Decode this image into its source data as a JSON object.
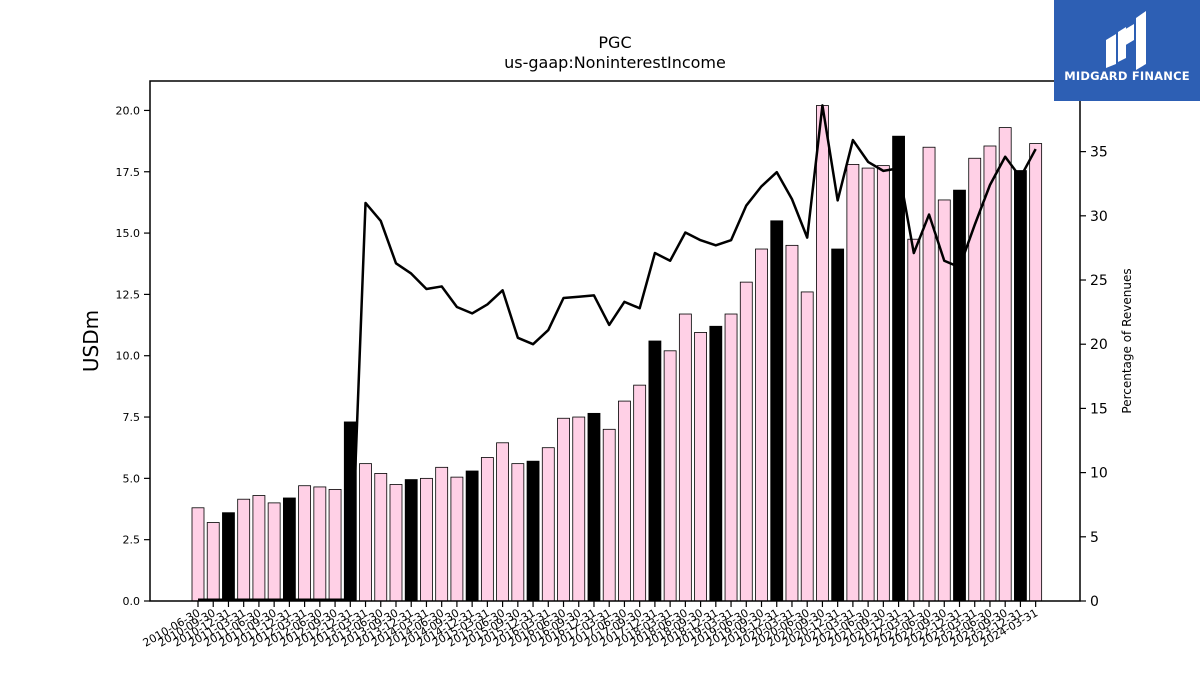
{
  "brand": {
    "name": "MIDGARD FINANCE",
    "logo_icon": "midgard-finance-logo-icon",
    "background_color": "#2d5fb4"
  },
  "chart_data": {
    "type": "bar",
    "title": "PGC",
    "subtitle": "us-gaap:NoninterestIncome",
    "ylabel": "USDm",
    "y2label": "Percentage of Revenues",
    "ylim": [
      0,
      21.2
    ],
    "y2lim": [
      0,
      40.5
    ],
    "yticks": [
      "0.0",
      "2.5",
      "5.0",
      "7.5",
      "10.0",
      "12.5",
      "15.0",
      "17.5",
      "20.0"
    ],
    "y2ticks": [
      "0",
      "5",
      "10",
      "15",
      "20",
      "25",
      "30",
      "35"
    ],
    "grid": false,
    "bar_colors": {
      "quarter": "#ffd0e6",
      "year_end": "#000000"
    },
    "categories": [
      "2010-06-30",
      "2010-09-30",
      "2010-12-31",
      "2011-03-31",
      "2011-06-30",
      "2011-09-30",
      "2011-12-31",
      "2012-03-31",
      "2012-06-30",
      "2012-09-30",
      "2012-12-31",
      "2013-03-31",
      "2013-06-30",
      "2013-09-30",
      "2013-12-31",
      "2014-03-31",
      "2014-06-30",
      "2014-09-30",
      "2014-12-31",
      "2015-03-31",
      "2015-06-30",
      "2015-09-30",
      "2015-12-31",
      "2016-03-31",
      "2016-06-30",
      "2016-09-30",
      "2016-12-31",
      "2017-03-31",
      "2017-06-30",
      "2017-09-30",
      "2017-12-31",
      "2018-03-31",
      "2018-06-30",
      "2018-09-30",
      "2018-12-31",
      "2019-03-31",
      "2019-06-30",
      "2019-09-30",
      "2019-12-31",
      "2020-03-31",
      "2020-06-30",
      "2020-09-30",
      "2020-12-31",
      "2021-03-31",
      "2021-06-30",
      "2021-09-30",
      "2021-12-31",
      "2022-03-31",
      "2022-06-30",
      "2022-09-30",
      "2022-12-31",
      "2023-03-31",
      "2023-06-30",
      "2023-09-30",
      "2023-12-31",
      "2024-03-31"
    ],
    "series": [
      {
        "type": "bar",
        "values": [
          3.8,
          3.2,
          3.6,
          4.15,
          4.3,
          4.0,
          4.2,
          4.7,
          4.65,
          4.55,
          7.3,
          5.6,
          5.2,
          4.75,
          4.95,
          5.0,
          5.45,
          5.05,
          5.3,
          5.85,
          6.45,
          5.6,
          5.7,
          6.25,
          7.45,
          7.5,
          7.65,
          7.0,
          8.15,
          8.8,
          10.6,
          10.2,
          11.7,
          10.95,
          11.2,
          11.7,
          13.0,
          14.35,
          15.5,
          14.5,
          12.6,
          20.2,
          14.35,
          17.8,
          17.65,
          17.75,
          18.95,
          14.75,
          18.5,
          16.35,
          16.75,
          18.05,
          18.55,
          19.3,
          17.55,
          18.65
        ],
        "year_end": [
          false,
          false,
          true,
          false,
          false,
          false,
          true,
          false,
          false,
          false,
          true,
          false,
          false,
          false,
          true,
          false,
          false,
          false,
          true,
          false,
          false,
          false,
          true,
          false,
          false,
          false,
          true,
          false,
          false,
          false,
          true,
          false,
          false,
          false,
          true,
          false,
          false,
          false,
          true,
          false,
          false,
          false,
          true,
          false,
          false,
          false,
          true,
          false,
          false,
          false,
          true,
          false,
          false,
          false,
          true,
          false
        ]
      },
      {
        "type": "line",
        "axis": "right",
        "values": [
          0.1,
          0.1,
          0.1,
          0.1,
          0.1,
          0.1,
          0.1,
          0.1,
          0.1,
          0.1,
          0.1,
          31.0,
          29.6,
          26.3,
          25.5,
          24.3,
          24.5,
          22.9,
          22.4,
          23.1,
          24.2,
          20.5,
          20.0,
          21.1,
          23.6,
          23.7,
          23.8,
          21.5,
          23.3,
          22.8,
          27.1,
          26.5,
          28.7,
          28.1,
          27.7,
          28.1,
          30.8,
          32.3,
          33.4,
          31.3,
          28.3,
          38.6,
          31.2,
          35.9,
          34.2,
          33.5,
          33.7,
          27.1,
          30.1,
          26.5,
          26.0,
          29.3,
          32.4,
          34.6,
          33.0,
          35.2
        ]
      }
    ]
  }
}
